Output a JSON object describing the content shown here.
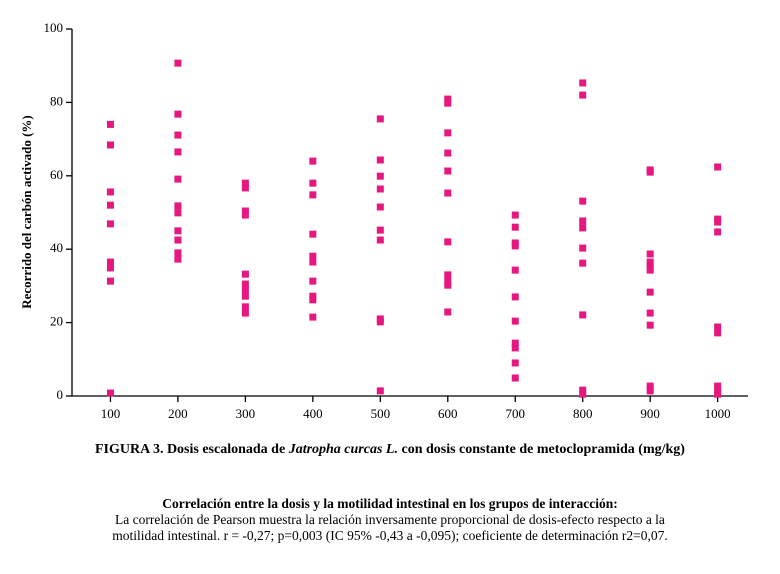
{
  "chart_data": {
    "type": "scatter",
    "title": [
      "FIGURA 3. Dosis escalonada de ",
      "Jatropha curcas L.",
      " con dosis constante de metoclopramida (mg/kg)"
    ],
    "y_label": "Recorrido del carbón activado (%)",
    "color": "#e6177f",
    "xlim": [
      43,
      1045
    ],
    "xticks": [
      100,
      200,
      300,
      400,
      500,
      600,
      700,
      800,
      900,
      1000
    ],
    "ylim": [
      0,
      100
    ],
    "yticks": [
      0,
      20,
      40,
      60,
      80,
      100
    ],
    "x": [
      100,
      100,
      100,
      100,
      100,
      100,
      100,
      100,
      100,
      200,
      200,
      200,
      200,
      200,
      200,
      200,
      200,
      200,
      200,
      200,
      300,
      300,
      300,
      300,
      300,
      300,
      300,
      300,
      300,
      300,
      400,
      400,
      400,
      400,
      400,
      400,
      400,
      400,
      400,
      400,
      500,
      500,
      500,
      500,
      500,
      500,
      500,
      500,
      500,
      500,
      600,
      600,
      600,
      600,
      600,
      600,
      600,
      600,
      600,
      600,
      600,
      700,
      700,
      700,
      700,
      700,
      700,
      700,
      700,
      700,
      700,
      700,
      800,
      800,
      800,
      800,
      800,
      800,
      800,
      800,
      800,
      800,
      900,
      900,
      900,
      900,
      900,
      900,
      900,
      900,
      900,
      900,
      900,
      1000,
      1000,
      1000,
      1000,
      1000,
      1000,
      1000,
      1000,
      1000
    ],
    "values": [
      74,
      68.4,
      55.6,
      52,
      46.9,
      36.5,
      34.9,
      31.3,
      0.8,
      90.7,
      76.8,
      71.1,
      66.5,
      59.1,
      51.8,
      49.9,
      45,
      42.5,
      39,
      37.3,
      58,
      56.7,
      50.4,
      49.3,
      33.2,
      30.5,
      28.9,
      27.2,
      24.3,
      22.6,
      64,
      58,
      54.8,
      44.1,
      38.1,
      36.5,
      31.3,
      27.2,
      26.2,
      21.5,
      75.5,
      64.3,
      59.9,
      56.4,
      51.5,
      45.2,
      42.5,
      21,
      20.2,
      1.4,
      80.9,
      79.8,
      71.7,
      66.2,
      61.3,
      55.3,
      42,
      33,
      31.3,
      30.2,
      22.9,
      49.3,
      46,
      41.7,
      40.9,
      34.3,
      27,
      20.4,
      14.4,
      13.1,
      9,
      4.9,
      85.3,
      82,
      53.1,
      47.7,
      45.8,
      40.3,
      36.2,
      22.1,
      1.6,
      0.5,
      61.6,
      61,
      38.7,
      36.5,
      35.4,
      34.3,
      28.3,
      22.6,
      19.3,
      2.7,
      1.4,
      62.4,
      48.2,
      47.4,
      44.7,
      18.8,
      17.2,
      2.7,
      1.6,
      0.5
    ]
  },
  "caption": {
    "heading": "Correlación entre la dosis y la motilidad intestinal en los grupos de interacción:",
    "lines": [
      "La correlación de Pearson muestra la relación inversamente proporcional de dosis-efecto respecto a la",
      "motilidad intestinal. r = -0,27; p=0,003 (IC 95% -0,43 a -0,095); coeficiente de determinación r2=0,07."
    ]
  }
}
